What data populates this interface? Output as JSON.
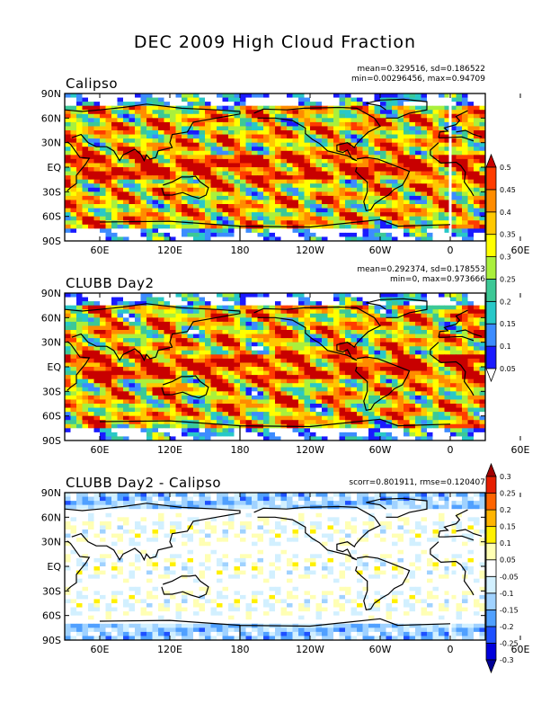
{
  "title": "DEC 2009 High Cloud Fraction",
  "panels": [
    {
      "title": "Calipso",
      "stats_line1": "mean=0.329516, sd=0.186522",
      "stats_line2": "min=0.00296456, max=0.94709"
    },
    {
      "title": "CLUBB Day2",
      "stats_line1": "mean=0.292374, sd=0.178553",
      "stats_line2": "min=0, max=0.973666"
    },
    {
      "title": "CLUBB Day2 - Calipso",
      "stats_line1": "scorr=0.801911, rmse=0.120407",
      "stats_line2": ""
    }
  ],
  "chart_data": [
    {
      "type": "heatmap",
      "title": "Calipso",
      "ylabels": [
        "90N",
        "60N",
        "30N",
        "EQ",
        "30S",
        "60S",
        "90S"
      ],
      "xlabels": [
        "60E",
        "120E",
        "180",
        "120W",
        "60W",
        "0",
        "60E"
      ],
      "colorbar_ticks": [
        0.05,
        0.1,
        0.15,
        0.2,
        0.25,
        0.3,
        0.35,
        0.4,
        0.45,
        0.5
      ],
      "colorbar_tick_labels": [
        "0.05",
        "0.1",
        "0.15",
        "0.2",
        "0.25",
        "0.3",
        "0.35",
        "0.4",
        "0.45",
        "0.5"
      ],
      "colorbar_colors": [
        "#ffffff",
        "#1a1aff",
        "#3d8cff",
        "#28c8c8",
        "#3cc896",
        "#aaf03c",
        "#ffff00",
        "#ffc800",
        "#ff8c00",
        "#ff3c00",
        "#c80000"
      ]
    },
    {
      "type": "heatmap",
      "title": "CLUBB Day2",
      "ylabels": [
        "90N",
        "60N",
        "30N",
        "EQ",
        "30S",
        "60S",
        "90S"
      ],
      "xlabels": [
        "60E",
        "120E",
        "180",
        "120W",
        "60W",
        "0",
        "60E"
      ],
      "colorbar_shared_with_panel": 0
    },
    {
      "type": "heatmap",
      "title": "CLUBB Day2 - Calipso",
      "ylabels": [
        "90N",
        "60N",
        "30N",
        "EQ",
        "30S",
        "60S",
        "90S"
      ],
      "xlabels": [
        "60E",
        "120E",
        "180",
        "120W",
        "60W",
        "0",
        "60E"
      ],
      "colorbar_ticks": [
        -0.3,
        -0.25,
        -0.2,
        -0.15,
        -0.1,
        -0.05,
        0.05,
        0.1,
        0.15,
        0.2,
        0.25,
        0.3
      ],
      "colorbar_tick_labels": [
        "-0.3",
        "-0.25",
        "-0.2",
        "-0.15",
        "-0.1",
        "-0.05",
        "0.05",
        "0.1",
        "0.15",
        "0.2",
        "0.25",
        "0.3"
      ],
      "colorbar_colors": [
        "#000096",
        "#0000dc",
        "#1e50ff",
        "#50a0ff",
        "#a0d2ff",
        "#d2f0ff",
        "#ffffff",
        "#ffffb4",
        "#fff000",
        "#ffb400",
        "#ff6400",
        "#e61e00",
        "#a00000"
      ]
    }
  ]
}
